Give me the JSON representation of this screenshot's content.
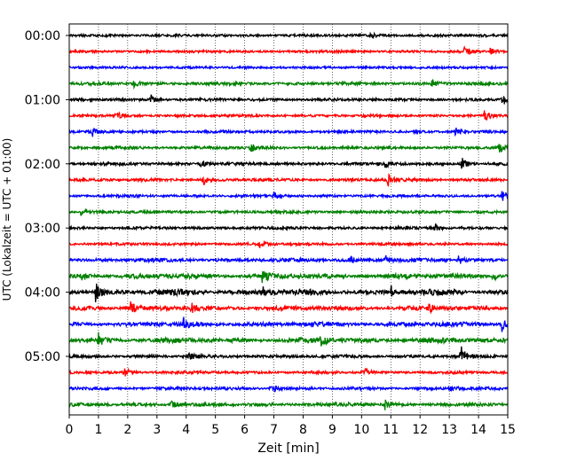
{
  "chart_data": {
    "type": "line",
    "title": "",
    "xlabel": "Zeit  [min]",
    "ylabel": "UTC (Lokalzeit = UTC + 01:00)",
    "xlim": [
      0,
      15
    ],
    "x_ticks": [
      0,
      1,
      2,
      3,
      4,
      5,
      6,
      7,
      8,
      9,
      10,
      11,
      12,
      13,
      14,
      15
    ],
    "x_tick_labels": [
      "0",
      "1",
      "2",
      "3",
      "4",
      "5",
      "6",
      "7",
      "8",
      "9",
      "10",
      "11",
      "12",
      "13",
      "14",
      "15"
    ],
    "y_tick_labels": [
      "00:00",
      "01:00",
      "02:00",
      "03:00",
      "04:00",
      "05:00"
    ],
    "trace_interval_min": 15,
    "grid": "vertical dotted",
    "color_cycle": [
      "#000000",
      "#ff0000",
      "#0000ff",
      "#008000"
    ],
    "series": [
      {
        "start": "00:00",
        "noise": 0.35,
        "events": [
          [
            10.3,
            1.0
          ]
        ]
      },
      {
        "start": "00:15",
        "noise": 0.35,
        "events": [
          [
            13.5,
            1.6
          ],
          [
            14.4,
            1.4
          ]
        ]
      },
      {
        "start": "00:30",
        "noise": 0.3,
        "events": []
      },
      {
        "start": "00:45",
        "noise": 0.6,
        "events": [
          [
            2.2,
            1.5
          ],
          [
            12.4,
            1.6
          ]
        ]
      },
      {
        "start": "01:00",
        "noise": 0.45,
        "events": [
          [
            2.8,
            1.4
          ],
          [
            14.8,
            2.2
          ]
        ]
      },
      {
        "start": "01:15",
        "noise": 0.4,
        "events": [
          [
            1.6,
            1.3
          ],
          [
            14.2,
            1.8
          ]
        ]
      },
      {
        "start": "01:30",
        "noise": 0.45,
        "events": [
          [
            0.8,
            1.3
          ],
          [
            13.2,
            1.5
          ]
        ]
      },
      {
        "start": "01:45",
        "noise": 0.55,
        "events": [
          [
            6.2,
            1.4
          ],
          [
            14.7,
            1.8
          ]
        ]
      },
      {
        "start": "02:00",
        "noise": 0.55,
        "events": [
          [
            4.5,
            1.3
          ],
          [
            13.4,
            2.6
          ],
          [
            10.8,
            1.3
          ]
        ]
      },
      {
        "start": "02:15",
        "noise": 0.55,
        "events": [
          [
            4.6,
            1.4
          ],
          [
            10.9,
            2.2
          ]
        ]
      },
      {
        "start": "02:30",
        "noise": 0.45,
        "events": [
          [
            7.0,
            1.3
          ],
          [
            14.8,
            1.8
          ]
        ]
      },
      {
        "start": "02:45",
        "noise": 0.5,
        "events": [
          [
            0.4,
            1.2
          ]
        ]
      },
      {
        "start": "03:00",
        "noise": 0.5,
        "events": [
          [
            12.5,
            1.6
          ]
        ]
      },
      {
        "start": "03:15",
        "noise": 0.4,
        "events": [
          [
            6.5,
            1.2
          ]
        ]
      },
      {
        "start": "03:30",
        "noise": 0.9,
        "events": [
          [
            9.6,
            1.7
          ],
          [
            10.8,
            1.6
          ],
          [
            13.3,
            1.6
          ]
        ]
      },
      {
        "start": "03:45",
        "noise": 1.4,
        "events": [
          [
            0.4,
            2.0
          ],
          [
            6.6,
            2.2
          ],
          [
            14.5,
            1.8
          ]
        ]
      },
      {
        "start": "04:00",
        "noise": 1.7,
        "events": [
          [
            0.9,
            3.2
          ],
          [
            6.6,
            2.6
          ],
          [
            11.0,
            2.0
          ]
        ]
      },
      {
        "start": "04:15",
        "noise": 1.2,
        "events": [
          [
            2.1,
            2.4
          ],
          [
            4.2,
            1.8
          ],
          [
            12.3,
            2.2
          ]
        ]
      },
      {
        "start": "04:30",
        "noise": 1.3,
        "events": [
          [
            3.9,
            2.0
          ],
          [
            14.8,
            2.4
          ]
        ]
      },
      {
        "start": "04:45",
        "noise": 1.5,
        "events": [
          [
            1.0,
            2.2
          ],
          [
            8.6,
            2.0
          ]
        ]
      },
      {
        "start": "05:00",
        "noise": 0.6,
        "events": [
          [
            13.4,
            3.8
          ],
          [
            4.1,
            1.4
          ]
        ]
      },
      {
        "start": "05:15",
        "noise": 0.45,
        "events": [
          [
            1.9,
            1.4
          ],
          [
            10.1,
            1.6
          ]
        ]
      },
      {
        "start": "05:30",
        "noise": 0.55,
        "events": [
          [
            6.9,
            2.0
          ],
          [
            13.0,
            1.4
          ]
        ]
      },
      {
        "start": "05:45",
        "noise": 0.8,
        "events": [
          [
            3.5,
            1.5
          ],
          [
            10.8,
            1.6
          ]
        ]
      }
    ]
  }
}
